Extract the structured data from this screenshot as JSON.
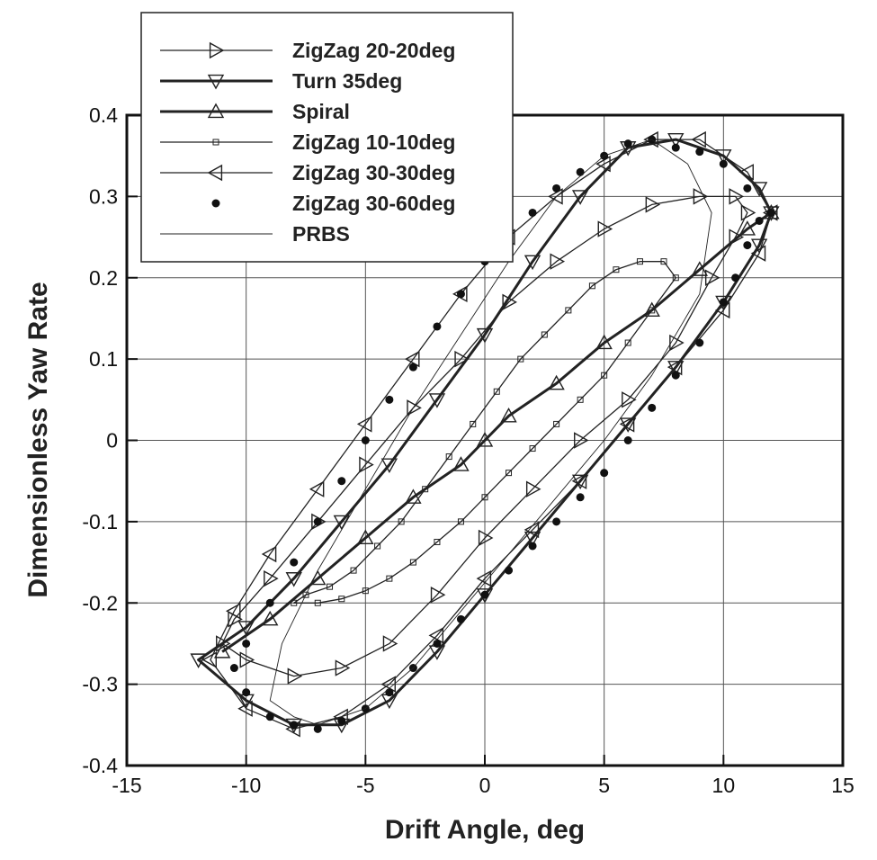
{
  "chart_data": {
    "type": "line",
    "title": "",
    "xlabel": "Drift Angle, deg",
    "ylabel": "Dimensionless Yaw Rate",
    "xlim": [
      -15,
      15
    ],
    "ylim": [
      -0.4,
      0.4
    ],
    "xticks": [
      -15,
      -10,
      -5,
      0,
      5,
      10,
      15
    ],
    "yticks": [
      -0.4,
      -0.3,
      -0.2,
      -0.1,
      0,
      0.1,
      0.2,
      0.3,
      0.4
    ],
    "xtick_labels": [
      "-15",
      "-10",
      "-5",
      "0",
      "5",
      "10",
      "15"
    ],
    "ytick_labels": [
      "-0.4",
      "-0.3",
      "-0.2",
      "-0.1",
      "0",
      "0.1",
      "0.2",
      "0.3",
      "0.4"
    ],
    "grid": true,
    "legend_position": "top-left",
    "series": [
      {
        "name": "ZigZag 20-20deg",
        "marker": "triangle-right",
        "stroke_width": 1.3,
        "loop": true,
        "x": [
          -11.0,
          -10.0,
          -8.0,
          -6.0,
          -4.0,
          -2.0,
          0.0,
          2.0,
          4.0,
          6.0,
          8.0,
          9.5,
          10.5,
          11.0,
          10.5,
          9.0,
          7.0,
          5.0,
          3.0,
          1.0,
          -1.0,
          -3.0,
          -5.0,
          -7.0,
          -9.0,
          -10.5
        ],
        "y": [
          -0.25,
          -0.27,
          -0.29,
          -0.28,
          -0.25,
          -0.19,
          -0.12,
          -0.06,
          0.0,
          0.05,
          0.12,
          0.2,
          0.25,
          0.28,
          0.3,
          0.3,
          0.29,
          0.26,
          0.22,
          0.17,
          0.1,
          0.04,
          -0.03,
          -0.1,
          -0.17,
          -0.22
        ]
      },
      {
        "name": "Turn 35deg",
        "marker": "triangle-down",
        "stroke_width": 3.0,
        "loop": true,
        "x": [
          -12.0,
          -10.0,
          -8.0,
          -6.0,
          -4.0,
          -2.0,
          0.0,
          2.0,
          4.0,
          6.0,
          8.0,
          10.0,
          11.5,
          12.0,
          11.5,
          10.0,
          8.0,
          6.0,
          4.0,
          2.0,
          0.0,
          -2.0,
          -4.0,
          -6.0,
          -8.0,
          -10.0
        ],
        "y": [
          -0.27,
          -0.32,
          -0.35,
          -0.35,
          -0.32,
          -0.26,
          -0.19,
          -0.12,
          -0.05,
          0.02,
          0.09,
          0.17,
          0.24,
          0.28,
          0.31,
          0.35,
          0.37,
          0.36,
          0.3,
          0.22,
          0.13,
          0.05,
          -0.03,
          -0.1,
          -0.17,
          -0.23
        ]
      },
      {
        "name": "Spiral",
        "marker": "triangle-up",
        "stroke_width": 3.0,
        "loop": false,
        "x": [
          -11.0,
          -9.0,
          -7.0,
          -5.0,
          -3.0,
          -1.0,
          0.0,
          1.0,
          3.0,
          5.0,
          7.0,
          9.0,
          11.0,
          12.0
        ],
        "y": [
          -0.26,
          -0.22,
          -0.17,
          -0.12,
          -0.07,
          -0.03,
          0.0,
          0.03,
          0.07,
          0.12,
          0.16,
          0.21,
          0.26,
          0.28
        ]
      },
      {
        "name": "ZigZag 10-10deg",
        "marker": "square",
        "stroke_width": 1.3,
        "loop": true,
        "x": [
          -8.0,
          -7.0,
          -6.0,
          -5.0,
          -4.0,
          -3.0,
          -2.0,
          -1.0,
          0.0,
          1.0,
          2.0,
          3.0,
          4.0,
          5.0,
          6.0,
          7.0,
          8.0,
          7.5,
          6.5,
          5.5,
          4.5,
          3.5,
          2.5,
          1.5,
          0.5,
          -0.5,
          -1.5,
          -2.5,
          -3.5,
          -4.5,
          -5.5,
          -6.5,
          -7.5
        ],
        "y": [
          -0.2,
          -0.2,
          -0.195,
          -0.185,
          -0.17,
          -0.15,
          -0.125,
          -0.1,
          -0.07,
          -0.04,
          -0.01,
          0.02,
          0.05,
          0.08,
          0.12,
          0.16,
          0.2,
          0.22,
          0.22,
          0.21,
          0.19,
          0.16,
          0.13,
          0.1,
          0.06,
          0.02,
          -0.02,
          -0.06,
          -0.1,
          -0.13,
          -0.16,
          -0.18,
          -0.19
        ]
      },
      {
        "name": "ZigZag 30-30deg",
        "marker": "triangle-left",
        "stroke_width": 1.3,
        "loop": true,
        "x": [
          -11.5,
          -10.0,
          -8.0,
          -6.0,
          -4.0,
          -2.0,
          0.0,
          2.0,
          4.0,
          6.0,
          8.0,
          10.0,
          11.5,
          12.0,
          11.0,
          9.0,
          7.0,
          5.0,
          3.0,
          1.0,
          -1.0,
          -3.0,
          -5.0,
          -7.0,
          -9.0,
          -10.5
        ],
        "y": [
          -0.27,
          -0.33,
          -0.355,
          -0.34,
          -0.3,
          -0.24,
          -0.17,
          -0.11,
          -0.05,
          0.02,
          0.09,
          0.16,
          0.23,
          0.28,
          0.33,
          0.37,
          0.37,
          0.34,
          0.3,
          0.25,
          0.18,
          0.1,
          0.02,
          -0.06,
          -0.14,
          -0.21
        ]
      },
      {
        "name": "ZigZag 30-60deg",
        "marker": "circle",
        "stroke_width": 0,
        "loop": false,
        "x": [
          -10.5,
          -10.0,
          -9.0,
          -8.0,
          -7.0,
          -6.0,
          -5.0,
          -4.0,
          -3.0,
          -2.0,
          -1.0,
          0.0,
          1.0,
          2.0,
          3.0,
          4.0,
          5.0,
          6.0,
          7.0,
          8.0,
          9.0,
          10.0,
          10.5,
          11.0,
          11.5,
          12.0,
          11.0,
          10.0,
          9.0,
          8.0,
          7.0,
          6.0,
          5.0,
          4.0,
          3.0,
          2.0,
          1.0,
          0.0,
          -1.0,
          -2.0,
          -3.0,
          -4.0,
          -5.0,
          -6.0,
          -7.0,
          -8.0,
          -9.0,
          -10.0
        ],
        "y": [
          -0.28,
          -0.31,
          -0.34,
          -0.35,
          -0.355,
          -0.345,
          -0.33,
          -0.31,
          -0.28,
          -0.25,
          -0.22,
          -0.19,
          -0.16,
          -0.13,
          -0.1,
          -0.07,
          -0.04,
          0.0,
          0.04,
          0.08,
          0.12,
          0.17,
          0.2,
          0.24,
          0.27,
          0.28,
          0.31,
          0.34,
          0.355,
          0.36,
          0.37,
          0.365,
          0.35,
          0.33,
          0.31,
          0.28,
          0.25,
          0.22,
          0.18,
          0.14,
          0.09,
          0.05,
          0.0,
          -0.05,
          -0.1,
          -0.15,
          -0.2,
          -0.25
        ]
      },
      {
        "name": "PRBS",
        "marker": "none",
        "stroke_width": 0.9,
        "loop": true,
        "x": [
          -9.0,
          -8.0,
          -7.0,
          -5.0,
          -3.0,
          -1.0,
          1.0,
          3.0,
          5.0,
          7.0,
          9.0,
          9.5,
          8.5,
          7.0,
          5.0,
          3.0,
          1.0,
          -1.0,
          -3.0,
          -5.0,
          -7.0,
          -8.5
        ],
        "y": [
          -0.32,
          -0.34,
          -0.35,
          -0.33,
          -0.28,
          -0.21,
          -0.14,
          -0.07,
          0.0,
          0.08,
          0.18,
          0.28,
          0.34,
          0.37,
          0.35,
          0.3,
          0.22,
          0.13,
          0.04,
          -0.06,
          -0.16,
          -0.25
        ]
      }
    ]
  }
}
